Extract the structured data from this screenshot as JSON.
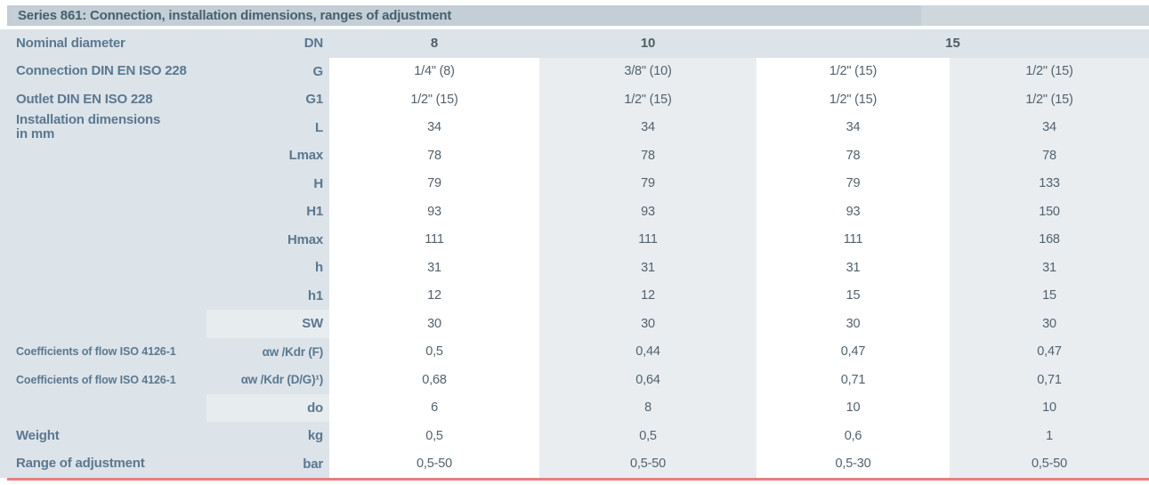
{
  "table": {
    "title": "Series 861: Connection, installation dimensions, ranges of adjustment",
    "dn_header": {
      "label": "Nominal diameter",
      "sub": "DN",
      "values": [
        "8",
        "10",
        "15"
      ]
    },
    "rows": [
      {
        "label": "Connection DIN EN ISO 228",
        "sub": "G",
        "values": [
          "1/4\" (8)",
          "3/8\" (10)",
          "1/2\" (15)",
          "1/2\" (15)"
        ]
      },
      {
        "label": "Outlet DIN EN ISO 228",
        "sub": "G1",
        "values": [
          "1/2\" (15)",
          "1/2\" (15)",
          "1/2\" (15)",
          "1/2\" (15)"
        ]
      },
      {
        "label": "Installation dimensions",
        "label2": "in mm",
        "sub": "L",
        "values": [
          "34",
          "34",
          "34",
          "34"
        ]
      },
      {
        "label": "",
        "sub": "Lmax",
        "values": [
          "78",
          "78",
          "78",
          "78"
        ]
      },
      {
        "label": "",
        "sub": "H",
        "values": [
          "79",
          "79",
          "79",
          "133"
        ]
      },
      {
        "label": "",
        "sub": "H1",
        "values": [
          "93",
          "93",
          "93",
          "150"
        ]
      },
      {
        "label": "",
        "sub": "Hmax",
        "values": [
          "111",
          "111",
          "111",
          "168"
        ]
      },
      {
        "label": "",
        "sub": "h",
        "values": [
          "31",
          "31",
          "31",
          "31"
        ]
      },
      {
        "label": "",
        "sub": "h1",
        "values": [
          "12",
          "12",
          "15",
          "15"
        ]
      },
      {
        "label": "",
        "sub": "SW",
        "light_sub": true,
        "values": [
          "30",
          "30",
          "30",
          "30"
        ]
      },
      {
        "label": "Coefficients of flow ISO 4126-1",
        "small_label": true,
        "sub": "αw /Kdr (F)",
        "sub_long": true,
        "values": [
          "0,5",
          "0,44",
          "0,47",
          "0,47"
        ]
      },
      {
        "label": "Coefficients of flow ISO 4126-1",
        "small_label": true,
        "sub": "αw /Kdr (D/G)¹)",
        "sub_long": true,
        "values": [
          "0,68",
          "0,64",
          "0,71",
          "0,71"
        ]
      },
      {
        "label": "",
        "sub": "do",
        "light_sub": true,
        "values": [
          "6",
          "8",
          "10",
          "10"
        ]
      },
      {
        "label": "Weight",
        "sub": "kg",
        "values": [
          "0,5",
          "0,5",
          "0,6",
          "1"
        ]
      },
      {
        "label": "Range of adjustment",
        "sub": "bar",
        "values": [
          "0,5-50",
          "0,5-50",
          "0,5-30",
          "0,5-50"
        ]
      }
    ],
    "colors": {
      "title_bg": "#c4ced6",
      "label_bg": "#dce3e9",
      "stripe_bg": "#e9edf0",
      "accent_line": "#e87f7f",
      "label_text": "#5a7890",
      "value_text": "#51626e"
    }
  }
}
